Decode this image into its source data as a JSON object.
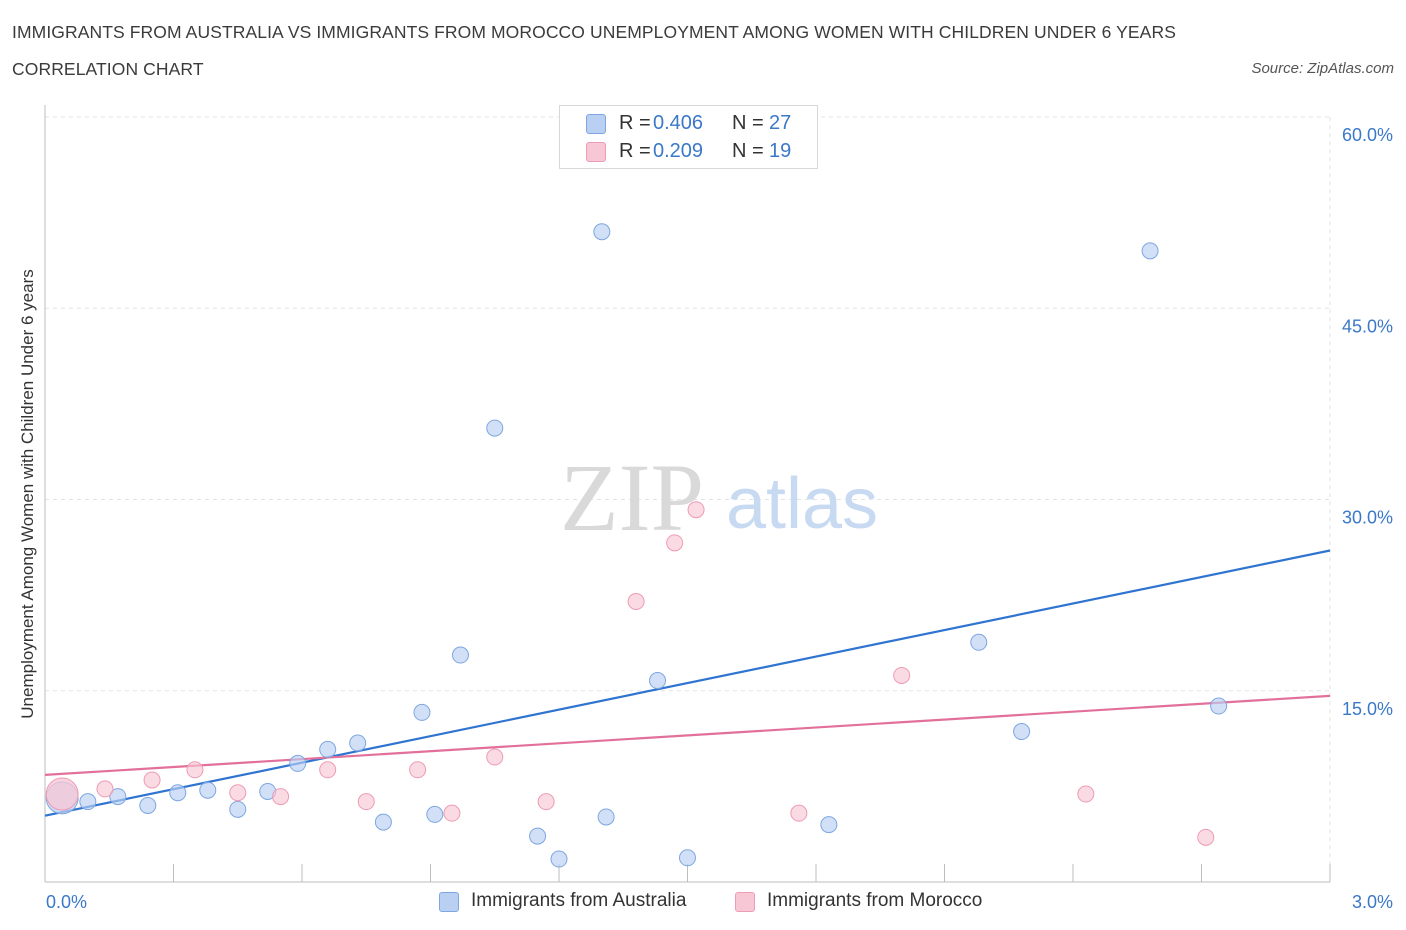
{
  "title": "IMMIGRANTS FROM AUSTRALIA VS IMMIGRANTS FROM MOROCCO UNEMPLOYMENT AMONG WOMEN WITH CHILDREN UNDER 6 YEARS CORRELATION CHART",
  "source": "Source: ZipAtlas.com",
  "watermark": {
    "zip": "ZIP",
    "atlas": "atlas"
  },
  "legend": {
    "rows": [
      {
        "r_label": "R =",
        "r_value": "0.406",
        "n_label": "N =",
        "n_value": "27",
        "color": "#b9d0f3"
      },
      {
        "r_label": "R =",
        "r_value": "0.209",
        "n_label": "N =",
        "n_value": "19",
        "color": "#f8c7d6"
      }
    ]
  },
  "bottom_legend": [
    {
      "label": "Immigrants from Australia",
      "color": "#b9d0f3"
    },
    {
      "label": "Immigrants from Morocco",
      "color": "#f8c7d6"
    }
  ],
  "chart_data": {
    "type": "scatter",
    "title": "IMMIGRANTS FROM AUSTRALIA VS IMMIGRANTS FROM MOROCCO UNEMPLOYMENT AMONG WOMEN WITH CHILDREN UNDER 6 YEARS CORRELATION CHART",
    "xlabel": "",
    "ylabel": "Unemployment Among Women with Children Under 6 years",
    "xlim": [
      0,
      3.0
    ],
    "ylim": [
      0,
      60.0
    ],
    "x_tick_labels": [
      "0.0%",
      "3.0%"
    ],
    "y_ticks": [
      15,
      30,
      45,
      60
    ],
    "y_tick_labels": [
      "15.0%",
      "30.0%",
      "45.0%",
      "60.0%"
    ],
    "grid": true,
    "legend_position": "top-center",
    "series": [
      {
        "name": "Immigrants from Australia",
        "color": "#b9d0f3",
        "edge_color": "#7ea6e0",
        "line_color": "#2f74d0",
        "trend": {
          "x": [
            0,
            3.0
          ],
          "y": [
            5.2,
            26.0
          ]
        },
        "points": [
          {
            "x": 0.04,
            "y": 6.6,
            "big": true
          },
          {
            "x": 0.1,
            "y": 6.3
          },
          {
            "x": 0.17,
            "y": 6.7
          },
          {
            "x": 0.24,
            "y": 6.0
          },
          {
            "x": 0.31,
            "y": 7.0
          },
          {
            "x": 0.38,
            "y": 7.2
          },
          {
            "x": 0.45,
            "y": 5.7
          },
          {
            "x": 0.52,
            "y": 7.1
          },
          {
            "x": 0.59,
            "y": 9.3
          },
          {
            "x": 0.66,
            "y": 10.4
          },
          {
            "x": 0.73,
            "y": 10.9
          },
          {
            "x": 0.79,
            "y": 4.7
          },
          {
            "x": 0.88,
            "y": 13.3
          },
          {
            "x": 0.91,
            "y": 5.3
          },
          {
            "x": 0.97,
            "y": 17.8
          },
          {
            "x": 1.05,
            "y": 35.6
          },
          {
            "x": 1.15,
            "y": 3.6
          },
          {
            "x": 1.2,
            "y": 1.8
          },
          {
            "x": 1.3,
            "y": 51.0
          },
          {
            "x": 1.31,
            "y": 5.1
          },
          {
            "x": 1.43,
            "y": 15.8
          },
          {
            "x": 1.5,
            "y": 1.9
          },
          {
            "x": 1.83,
            "y": 4.5
          },
          {
            "x": 2.18,
            "y": 18.8
          },
          {
            "x": 2.28,
            "y": 11.8
          },
          {
            "x": 2.58,
            "y": 49.5
          },
          {
            "x": 2.74,
            "y": 13.8
          }
        ]
      },
      {
        "name": "Immigrants from Morocco",
        "color": "#f8c7d6",
        "edge_color": "#ee9bb4",
        "line_color": "#e2709a",
        "trend": {
          "x": [
            0,
            3.0
          ],
          "y": [
            8.4,
            14.6
          ]
        },
        "points": [
          {
            "x": 0.04,
            "y": 6.9,
            "big": true
          },
          {
            "x": 0.14,
            "y": 7.3
          },
          {
            "x": 0.25,
            "y": 8.0
          },
          {
            "x": 0.35,
            "y": 8.8
          },
          {
            "x": 0.45,
            "y": 7.0
          },
          {
            "x": 0.55,
            "y": 6.7
          },
          {
            "x": 0.66,
            "y": 8.8
          },
          {
            "x": 0.75,
            "y": 6.3
          },
          {
            "x": 0.87,
            "y": 8.8
          },
          {
            "x": 0.95,
            "y": 5.4
          },
          {
            "x": 1.05,
            "y": 9.8
          },
          {
            "x": 1.17,
            "y": 6.3
          },
          {
            "x": 1.38,
            "y": 22.0
          },
          {
            "x": 1.47,
            "y": 26.6
          },
          {
            "x": 1.52,
            "y": 29.2
          },
          {
            "x": 1.76,
            "y": 5.4
          },
          {
            "x": 2.0,
            "y": 16.2
          },
          {
            "x": 2.43,
            "y": 6.9
          },
          {
            "x": 2.71,
            "y": 3.5
          }
        ]
      }
    ]
  }
}
